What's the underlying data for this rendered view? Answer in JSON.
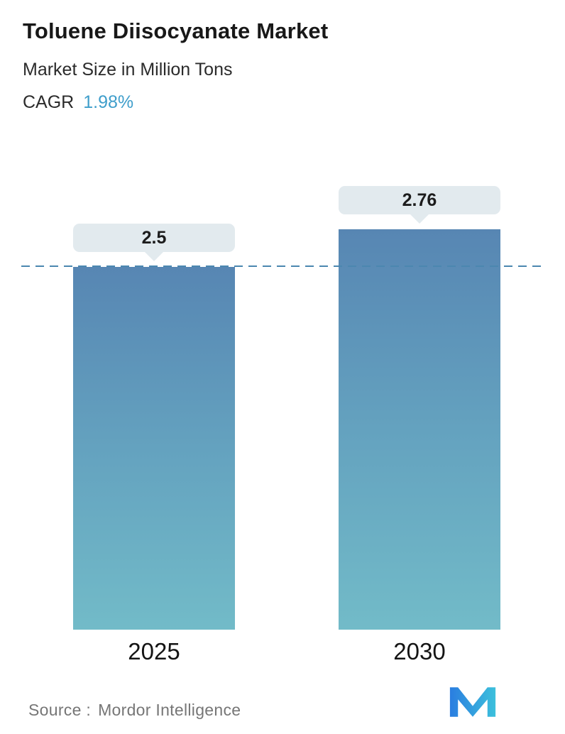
{
  "header": {
    "title": "Toluene Diisocyanate Market",
    "subtitle": "Market Size in Million Tons",
    "cagr_label": "CAGR",
    "cagr_value": "1.98%"
  },
  "chart_data": {
    "type": "bar",
    "title": "Toluene Diisocyanate Market",
    "subtitle": "Market Size in Million Tons",
    "unit": "Million Tons",
    "cagr": "1.98%",
    "categories": [
      "2025",
      "2030"
    ],
    "values": [
      2.5,
      2.76
    ],
    "xlabel": "",
    "ylabel": "",
    "ylim": [
      0,
      2.76
    ],
    "grid": false,
    "legend": "none",
    "reference_line": {
      "value": 2.5,
      "style": "dashed"
    }
  },
  "footer": {
    "source_label": "Source :",
    "source_value": "Mordor Intelligence",
    "logo": "mordor-intelligence-logo"
  },
  "colors": {
    "accent_blue": "#3f9ecb",
    "bar_gradient_top": "#5786b3",
    "bar_gradient_bottom": "#72bbc8",
    "callout_bg": "#e2eaee",
    "dashed_line": "#4b87b0",
    "source_text": "#767676",
    "logo_blue": "#2a7de0",
    "logo_teal": "#3cc0dc"
  }
}
